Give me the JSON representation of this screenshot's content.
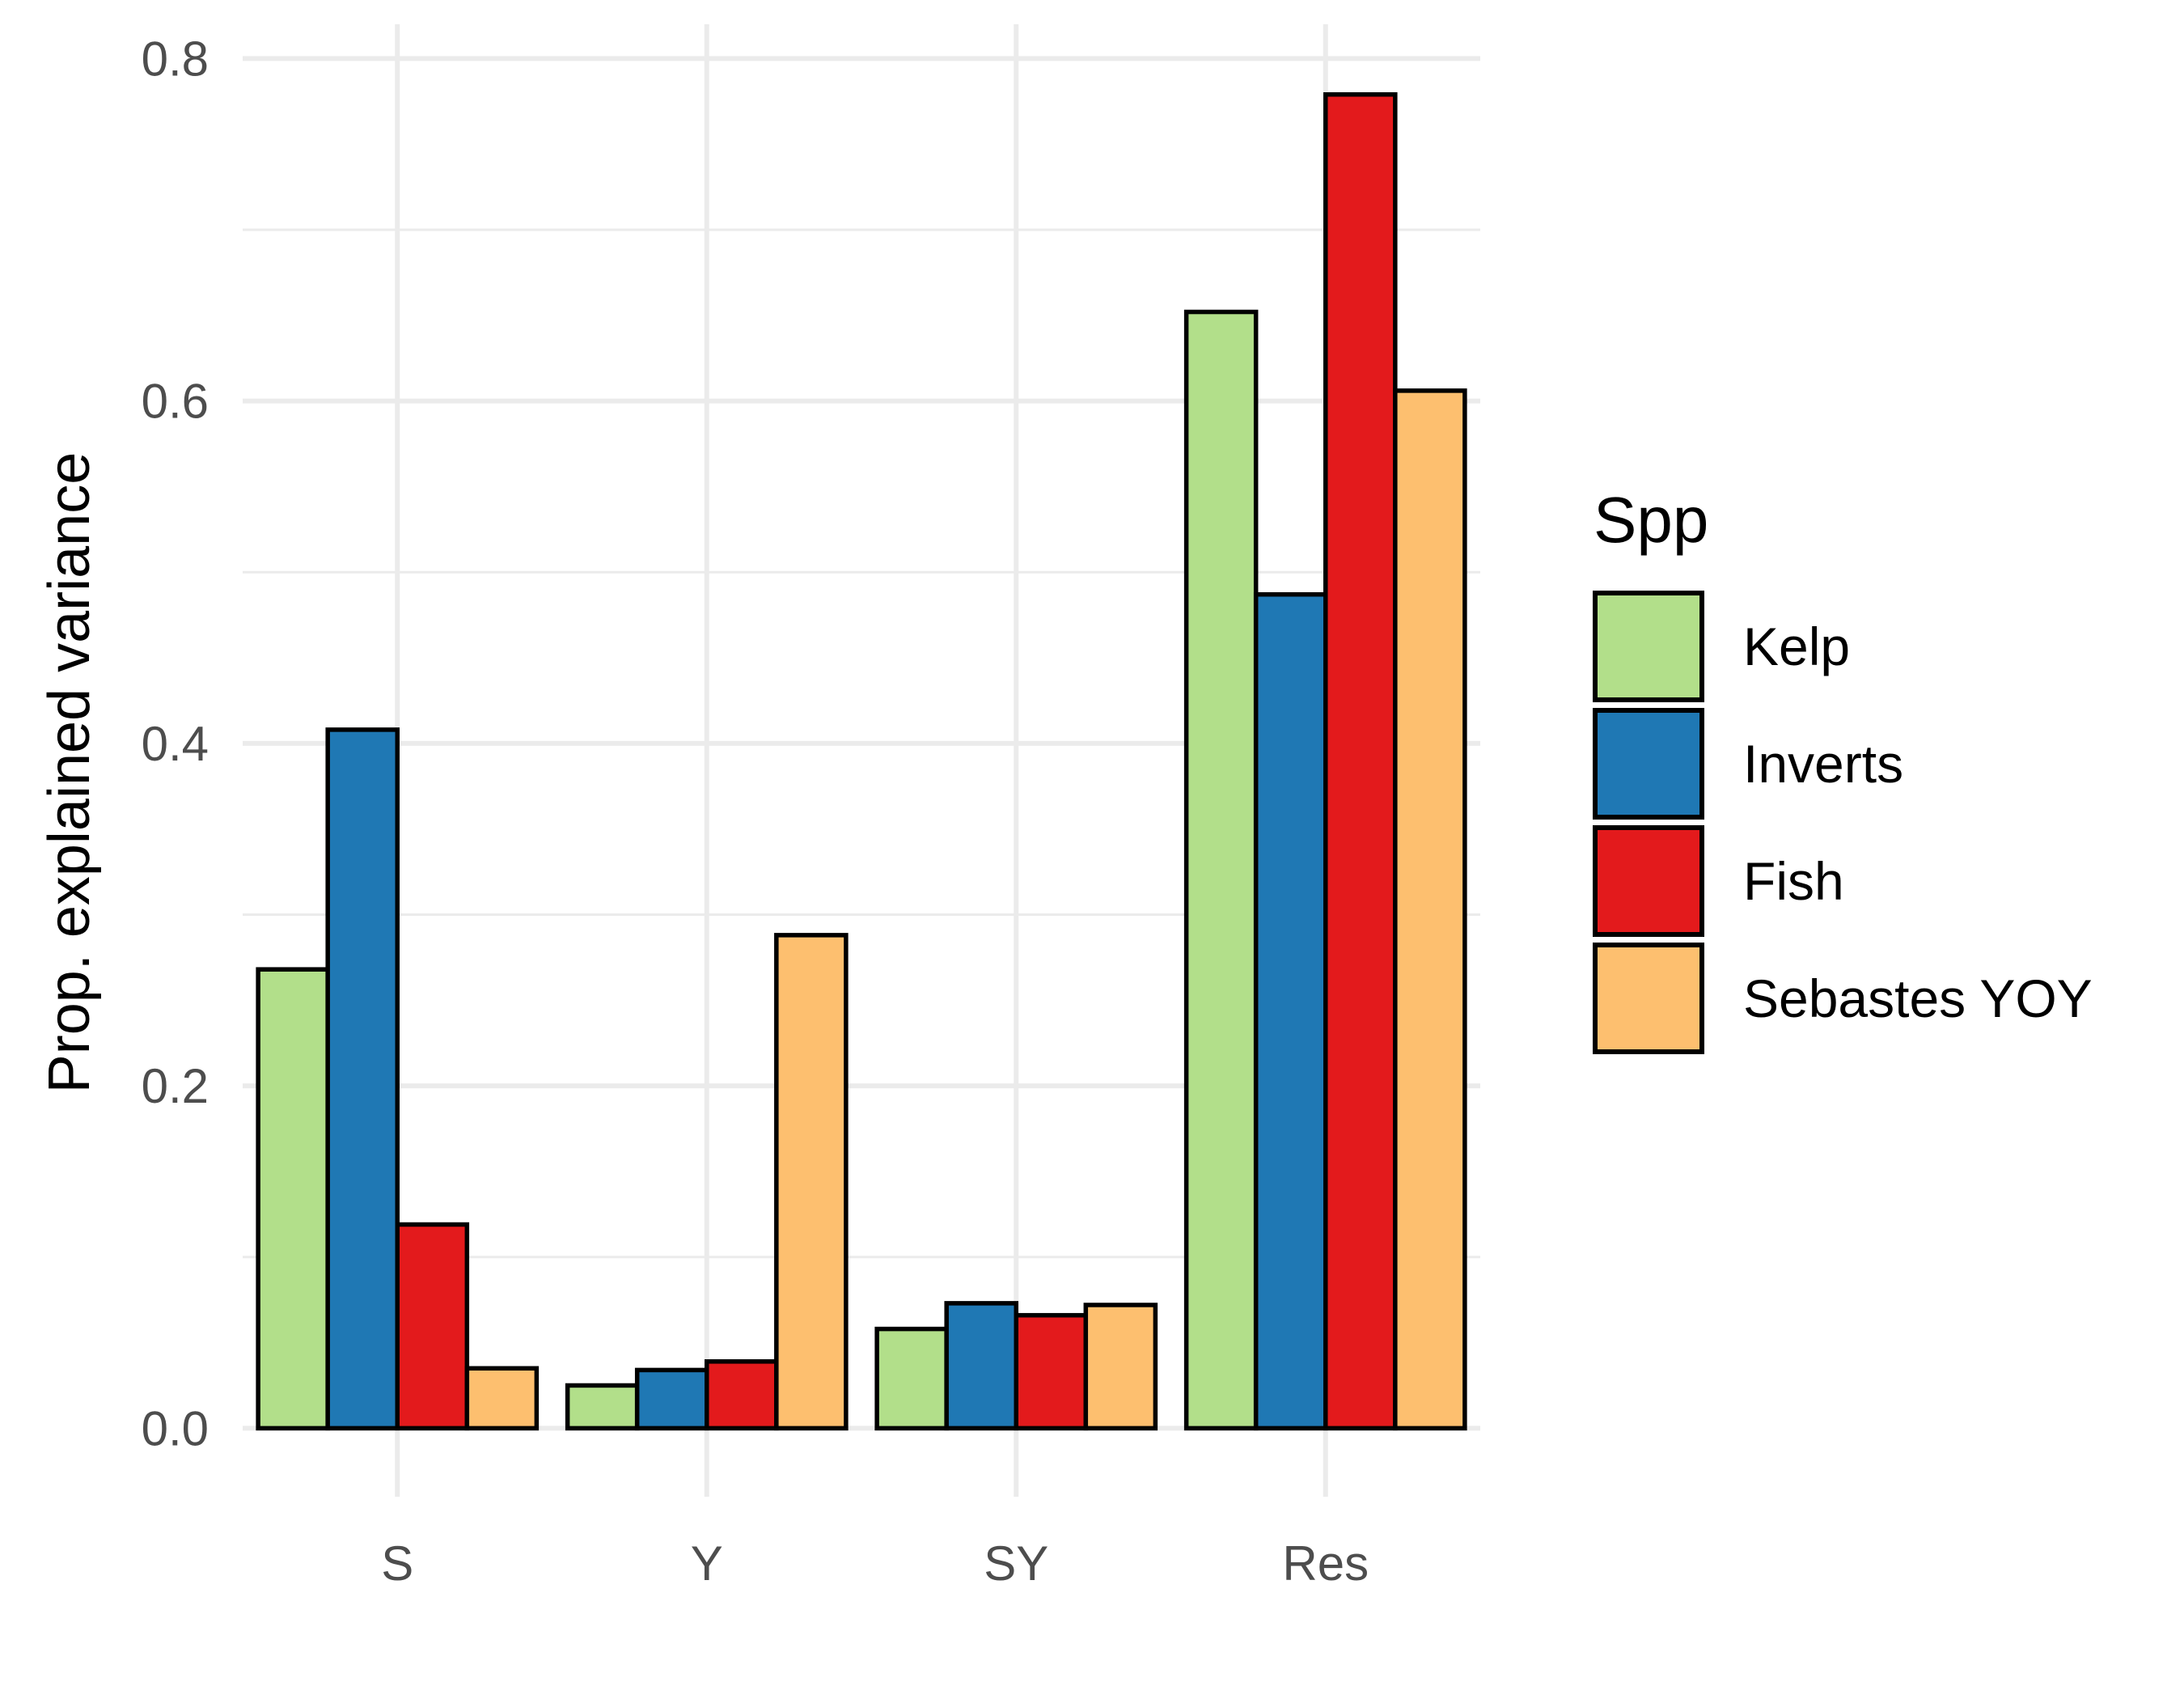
{
  "chart_data": {
    "type": "bar",
    "title": "",
    "xlabel": "",
    "ylabel": "Prop. explained variance",
    "categories": [
      "S",
      "Y",
      "SY",
      "Res"
    ],
    "ylim": [
      -0.04,
      0.82
    ],
    "yticks": [
      0.0,
      0.2,
      0.4,
      0.6,
      0.8
    ],
    "ytick_labels": [
      "0.0",
      "0.2",
      "0.4",
      "0.6",
      "0.8"
    ],
    "grid": true,
    "legend": {
      "title": "Spp",
      "position": "right"
    },
    "series": [
      {
        "name": "Kelp",
        "color": "#B2DF8A",
        "values": [
          0.268,
          0.025,
          0.058,
          0.652
        ]
      },
      {
        "name": "Inverts",
        "color": "#1F78B4",
        "values": [
          0.408,
          0.034,
          0.073,
          0.487
        ]
      },
      {
        "name": "Fish",
        "color": "#E31A1C",
        "values": [
          0.119,
          0.039,
          0.066,
          0.779
        ]
      },
      {
        "name": "Sebastes YOY",
        "color": "#FDBF6F",
        "values": [
          0.035,
          0.288,
          0.072,
          0.606
        ]
      }
    ]
  }
}
